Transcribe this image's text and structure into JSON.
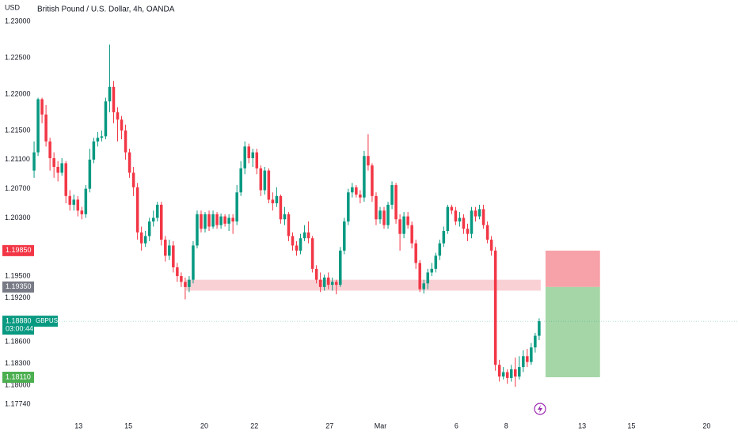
{
  "chart_data": {
    "type": "candlestick",
    "title": "British Pound / U.S. Dollar, 4h, OANDA",
    "currency": "USD",
    "up_color": "#089981",
    "down_color": "#f23645",
    "ylim": [
      1.17534,
      1.23293
    ],
    "yticks": [
      {
        "value": 1.23,
        "label": "1.23000"
      },
      {
        "value": 1.225,
        "label": "1.22500"
      },
      {
        "value": 1.22,
        "label": "1.22000"
      },
      {
        "value": 1.215,
        "label": "1.21500"
      },
      {
        "value": 1.211,
        "label": "1.21100"
      },
      {
        "value": 1.207,
        "label": "1.20700"
      },
      {
        "value": 1.203,
        "label": "1.20300"
      },
      {
        "value": 1.195,
        "label": "1.19500"
      },
      {
        "value": 1.192,
        "label": "1.19200"
      },
      {
        "value": 1.186,
        "label": "1.18600"
      },
      {
        "value": 1.183,
        "label": "1.18300"
      },
      {
        "value": 1.18,
        "label": "1.18000"
      },
      {
        "value": 1.1774,
        "label": "1.17740"
      }
    ],
    "xlim": [
      -2,
      177
    ],
    "xticks": [
      {
        "value": 11.2,
        "label": "13"
      },
      {
        "value": 23.7,
        "label": "15"
      },
      {
        "value": 42.8,
        "label": "20"
      },
      {
        "value": 55.4,
        "label": "22"
      },
      {
        "value": 74.3,
        "label": "27"
      },
      {
        "value": 87.1,
        "label": "Mar"
      },
      {
        "value": 106.2,
        "label": "6"
      },
      {
        "value": 118.7,
        "label": "8"
      },
      {
        "value": 137.8,
        "label": "13"
      },
      {
        "value": 150.2,
        "label": "15"
      },
      {
        "value": 169.1,
        "label": "20"
      }
    ],
    "candles": [
      [
        1.2095,
        1.2135,
        1.2085,
        1.212
      ],
      [
        1.212,
        1.2195,
        1.2115,
        1.2193
      ],
      [
        1.2193,
        1.2195,
        1.216,
        1.2172
      ],
      [
        1.2172,
        1.2185,
        1.2128,
        1.2135
      ],
      [
        1.2135,
        1.214,
        1.2095,
        1.2112
      ],
      [
        1.2112,
        1.212,
        1.2085,
        1.21
      ],
      [
        1.21,
        1.2108,
        1.208,
        1.2092
      ],
      [
        1.2092,
        1.2112,
        1.2088,
        1.2105
      ],
      [
        1.2105,
        1.2108,
        1.205,
        1.206
      ],
      [
        1.206,
        1.2068,
        1.204,
        1.2048
      ],
      [
        1.2048,
        1.2062,
        1.204,
        1.2055
      ],
      [
        1.2055,
        1.206,
        1.2032,
        1.204
      ],
      [
        1.204,
        1.2045,
        1.2028,
        1.2035
      ],
      [
        1.2035,
        1.2075,
        1.203,
        1.207
      ],
      [
        1.207,
        1.2125,
        1.2065,
        1.211
      ],
      [
        1.211,
        1.214,
        1.2105,
        1.2135
      ],
      [
        1.2135,
        1.2148,
        1.2128,
        1.214
      ],
      [
        1.214,
        1.215,
        1.2135,
        1.2142
      ],
      [
        1.2142,
        1.2195,
        1.2138,
        1.219
      ],
      [
        1.219,
        1.2268,
        1.2175,
        1.221
      ],
      [
        1.221,
        1.2218,
        1.216,
        1.2175
      ],
      [
        1.2175,
        1.2182,
        1.2135,
        1.2165
      ],
      [
        1.2165,
        1.217,
        1.2138,
        1.215
      ],
      [
        1.215,
        1.2158,
        1.211,
        1.212
      ],
      [
        1.212,
        1.2125,
        1.2085,
        1.2092
      ],
      [
        1.2092,
        1.21,
        1.206,
        1.2072
      ],
      [
        1.2072,
        1.2078,
        1.2,
        1.201
      ],
      [
        1.201,
        1.2018,
        1.1985,
        1.1995
      ],
      [
        1.1995,
        1.2012,
        1.199,
        1.2005
      ],
      [
        1.2005,
        1.203,
        1.1998,
        1.2025
      ],
      [
        1.2025,
        1.204,
        1.2018,
        1.203
      ],
      [
        1.203,
        1.2052,
        1.2025,
        1.2048
      ],
      [
        1.2048,
        1.2052,
        1.1992,
        1.2
      ],
      [
        1.2,
        1.2005,
        1.197,
        1.1978
      ],
      [
        1.1978,
        1.2,
        1.1972,
        1.1992
      ],
      [
        1.1992,
        1.1998,
        1.1955,
        1.1962
      ],
      [
        1.1962,
        1.1968,
        1.1942,
        1.195
      ],
      [
        1.195,
        1.1955,
        1.1935,
        1.1942
      ],
      [
        1.1942,
        1.1948,
        1.1918,
        1.1935
      ],
      [
        1.1935,
        1.195,
        1.1928,
        1.1945
      ],
      [
        1.1945,
        1.1998,
        1.194,
        1.1992
      ],
      [
        1.1992,
        1.204,
        1.1988,
        1.2035
      ],
      [
        1.2035,
        1.204,
        1.201,
        1.2015
      ],
      [
        1.2015,
        1.2038,
        1.201,
        1.2035
      ],
      [
        1.2035,
        1.204,
        1.2012,
        1.2018
      ],
      [
        1.2018,
        1.204,
        1.2015,
        1.2035
      ],
      [
        1.2035,
        1.2038,
        1.2015,
        1.202
      ],
      [
        1.202,
        1.2036,
        1.2015,
        1.2032
      ],
      [
        1.2032,
        1.2035,
        1.2018,
        1.2022
      ],
      [
        1.2022,
        1.2035,
        1.2012,
        1.203
      ],
      [
        1.203,
        1.2035,
        1.2008,
        1.2025
      ],
      [
        1.2025,
        1.2075,
        1.202,
        1.2065
      ],
      [
        1.2065,
        1.2108,
        1.206,
        1.2098
      ],
      [
        1.2098,
        1.2135,
        1.209,
        1.2128
      ],
      [
        1.2128,
        1.2132,
        1.2105,
        1.2112
      ],
      [
        1.2112,
        1.2125,
        1.21,
        1.212
      ],
      [
        1.212,
        1.2125,
        1.209,
        1.2098
      ],
      [
        1.2098,
        1.2102,
        1.206,
        1.2068
      ],
      [
        1.2068,
        1.21,
        1.2062,
        1.2095
      ],
      [
        1.2095,
        1.2098,
        1.205,
        1.2055
      ],
      [
        1.2055,
        1.2065,
        1.204,
        1.205
      ],
      [
        1.205,
        1.2072,
        1.2045,
        1.206
      ],
      [
        1.206,
        1.2062,
        1.2022,
        1.2028
      ],
      [
        1.2028,
        1.2045,
        1.202,
        1.2035
      ],
      [
        1.2035,
        1.2038,
        1.1998,
        1.2005
      ],
      [
        1.2005,
        1.201,
        1.1985,
        1.1992
      ],
      [
        1.1992,
        1.1998,
        1.1978,
        1.1985
      ],
      [
        1.1985,
        1.2008,
        1.198,
        1.2002
      ],
      [
        1.2002,
        1.202,
        1.1998,
        1.201
      ],
      [
        1.201,
        1.2025,
        1.1995,
        1.2002
      ],
      [
        1.2002,
        1.2005,
        1.1955,
        1.196
      ],
      [
        1.196,
        1.1965,
        1.194,
        1.1945
      ],
      [
        1.1945,
        1.1955,
        1.1928,
        1.1935
      ],
      [
        1.1935,
        1.1952,
        1.193,
        1.1948
      ],
      [
        1.1948,
        1.1955,
        1.1932,
        1.1938
      ],
      [
        1.1938,
        1.1948,
        1.193,
        1.1942
      ],
      [
        1.1942,
        1.1945,
        1.1925,
        1.1938
      ],
      [
        1.1938,
        1.199,
        1.1935,
        1.1985
      ],
      [
        1.1985,
        1.203,
        1.198,
        1.2025
      ],
      [
        1.2025,
        1.207,
        1.202,
        1.2065
      ],
      [
        1.2065,
        1.2078,
        1.2058,
        1.2072
      ],
      [
        1.2072,
        1.2075,
        1.2058,
        1.2062
      ],
      [
        1.2062,
        1.2068,
        1.205,
        1.2058
      ],
      [
        1.2058,
        1.2122,
        1.2052,
        1.2115
      ],
      [
        1.2115,
        1.2145,
        1.2095,
        1.2102
      ],
      [
        1.2102,
        1.2105,
        1.2052,
        1.206
      ],
      [
        1.206,
        1.2065,
        1.202,
        1.2028
      ],
      [
        1.2028,
        1.2045,
        1.2022,
        1.204
      ],
      [
        1.204,
        1.2045,
        1.2015,
        1.202
      ],
      [
        1.202,
        1.2052,
        1.2015,
        1.2048
      ],
      [
        1.2048,
        1.208,
        1.2042,
        1.2075
      ],
      [
        1.2075,
        1.2078,
        1.2022,
        1.2028
      ],
      [
        1.2028,
        1.2035,
        1.1985,
        1.2008
      ],
      [
        1.2008,
        1.2038,
        1.2002,
        1.2032
      ],
      [
        1.2032,
        1.2038,
        1.2015,
        1.202
      ],
      [
        1.202,
        1.2025,
        1.1988,
        1.1995
      ],
      [
        1.1995,
        1.2,
        1.196,
        1.1968
      ],
      [
        1.1968,
        1.1972,
        1.1928,
        1.1932
      ],
      [
        1.1932,
        1.1945,
        1.1926,
        1.194
      ],
      [
        1.194,
        1.196,
        1.1932,
        1.1955
      ],
      [
        1.1955,
        1.1968,
        1.195,
        1.196
      ],
      [
        1.196,
        1.1982,
        1.1955,
        1.1978
      ],
      [
        1.1978,
        1.2,
        1.1972,
        1.1995
      ],
      [
        1.1995,
        1.2018,
        1.199,
        1.2012
      ],
      [
        1.2012,
        1.2048,
        1.2008,
        1.2045
      ],
      [
        1.2045,
        1.2048,
        1.2035,
        1.204
      ],
      [
        1.204,
        1.2045,
        1.202,
        1.2025
      ],
      [
        1.2025,
        1.2038,
        1.2018,
        1.203
      ],
      [
        1.203,
        1.2035,
        1.2008,
        1.2015
      ],
      [
        1.2015,
        1.2022,
        1.1998,
        1.2008
      ],
      [
        1.2008,
        1.2045,
        1.2002,
        1.204
      ],
      [
        1.204,
        1.2045,
        1.2025,
        1.2032
      ],
      [
        1.2032,
        1.2048,
        1.2028,
        1.2042
      ],
      [
        1.2042,
        1.2048,
        1.2015,
        1.202
      ],
      [
        1.202,
        1.2025,
        1.1995,
        1.2
      ],
      [
        1.2,
        1.2005,
        1.1978,
        1.1985
      ],
      [
        1.1985,
        1.199,
        1.182,
        1.1828
      ],
      [
        1.1828,
        1.1835,
        1.1805,
        1.1812
      ],
      [
        1.1812,
        1.1825,
        1.1808,
        1.1818
      ],
      [
        1.1818,
        1.1822,
        1.1802,
        1.181
      ],
      [
        1.181,
        1.1828,
        1.1805,
        1.1822
      ],
      [
        1.1822,
        1.1838,
        1.1798,
        1.1812
      ],
      [
        1.1812,
        1.184,
        1.1808,
        1.1825
      ],
      [
        1.1825,
        1.1848,
        1.1818,
        1.184
      ],
      [
        1.184,
        1.185,
        1.1825,
        1.1832
      ],
      [
        1.1832,
        1.1858,
        1.1828,
        1.1852
      ],
      [
        1.1852,
        1.1872,
        1.1845,
        1.1868
      ],
      [
        1.1868,
        1.1892,
        1.1862,
        1.1888
      ]
    ],
    "zone": {
      "x": [
        38.2,
        127.4
      ],
      "top": 1.1945,
      "bottom": 1.193,
      "color": "#f7c6cb"
    },
    "position": {
      "x": [
        128.6,
        142.3
      ],
      "stop": 1.1985,
      "entry": 1.1935,
      "target": 1.1811,
      "stop_color": "#f7a1a8",
      "target_color": "#a5d6a7"
    },
    "price_tags": [
      {
        "value": 1.1985,
        "label": "1.19850",
        "color": "#f23645"
      },
      {
        "value": 1.1935,
        "label": "1.19350",
        "color": "#787b86"
      },
      {
        "value": 1.1888,
        "label": "1.18880",
        "color": "#089981"
      },
      {
        "value": 1.1811,
        "label": "1.18110",
        "color": "#4caf50"
      }
    ],
    "current": {
      "tag": 2,
      "symbol": "GBPUSD",
      "countdown": "03:00:44"
    }
  }
}
